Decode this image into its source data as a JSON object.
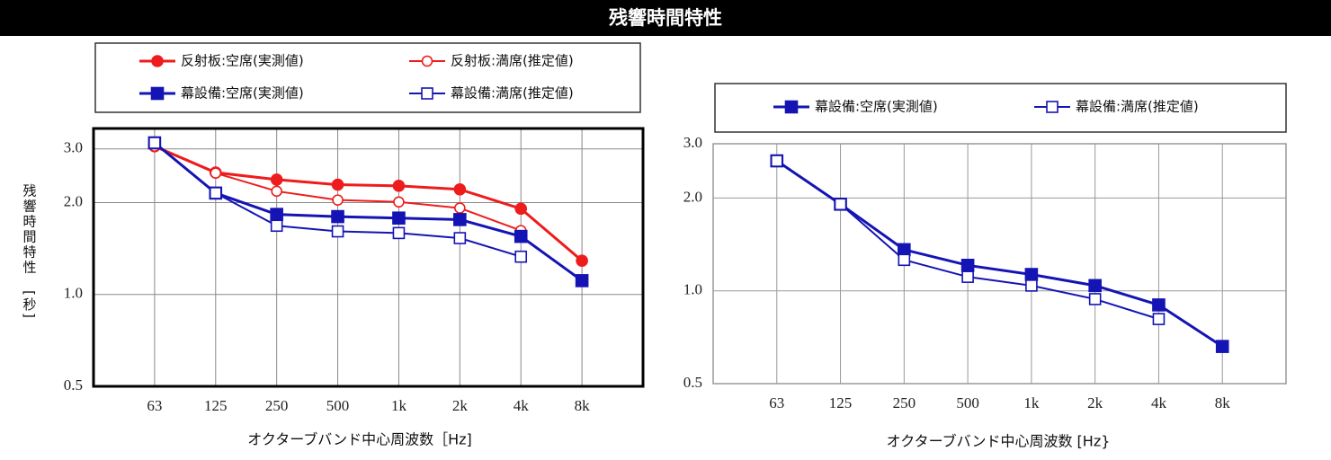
{
  "title": "残響時間特性",
  "chart_data": [
    {
      "type": "line",
      "log_y": true,
      "grid": true,
      "y_label": "残響時間特性　[秒]",
      "x_label": "オクターブバンド中心周波数［Hz]",
      "categories": [
        "63",
        "125",
        "250",
        "500",
        "1k",
        "2k",
        "4k",
        "8k"
      ],
      "ylim": [
        0.5,
        3.5
      ],
      "yticks": [
        0.5,
        {
          "value": 1,
          "label": "1.0"
        },
        {
          "value": 2,
          "label": "2.0"
        },
        {
          "value": 3,
          "label": "3.0"
        }
      ],
      "series": [
        {
          "name": "反射板:空席(実測値)",
          "color": "#ee1c1c",
          "marker": "circle",
          "filled": true,
          "values": [
            3.06,
            2.51,
            2.38,
            2.29,
            2.27,
            2.21,
            1.91,
            1.29
          ]
        },
        {
          "name": "反射板:満席(推定値)",
          "color": "#ee1c1c",
          "marker": "circle",
          "filled": false,
          "values": [
            3.06,
            2.5,
            2.18,
            2.04,
            2.01,
            1.92,
            1.62,
            null
          ]
        },
        {
          "name": "幕設備:空席(実測値)",
          "color": "#1414b4",
          "marker": "square",
          "filled": true,
          "values": [
            3.14,
            2.15,
            1.83,
            1.8,
            1.78,
            1.76,
            1.55,
            1.11
          ]
        },
        {
          "name": "幕設備:満席(推定値)",
          "color": "#1414b4",
          "marker": "square",
          "filled": false,
          "values": [
            3.14,
            2.15,
            1.68,
            1.61,
            1.59,
            1.53,
            1.33,
            null
          ]
        }
      ]
    },
    {
      "type": "line",
      "log_y": true,
      "grid": true,
      "x_label": "オクターブバンド中心周波数 [Hz}",
      "categories": [
        "63",
        "125",
        "250",
        "500",
        "1k",
        "2k",
        "4k",
        "8k"
      ],
      "ylim": [
        0.5,
        3
      ],
      "yticks": [
        0.5,
        {
          "value": 1,
          "label": "1.0"
        },
        {
          "value": 2,
          "label": "2.0"
        },
        {
          "value": 3,
          "label": "3.0"
        }
      ],
      "series": [
        {
          "name": "幕設備:空席(実測値)",
          "color": "#1414b4",
          "marker": "square",
          "filled": true,
          "values": [
            2.64,
            1.91,
            1.36,
            1.21,
            1.13,
            1.04,
            0.9,
            0.66
          ]
        },
        {
          "name": "幕設備:満席(推定値)",
          "color": "#1414b4",
          "marker": "square",
          "filled": false,
          "values": [
            2.64,
            1.91,
            1.26,
            1.11,
            1.04,
            0.94,
            0.81,
            null
          ]
        }
      ]
    }
  ]
}
